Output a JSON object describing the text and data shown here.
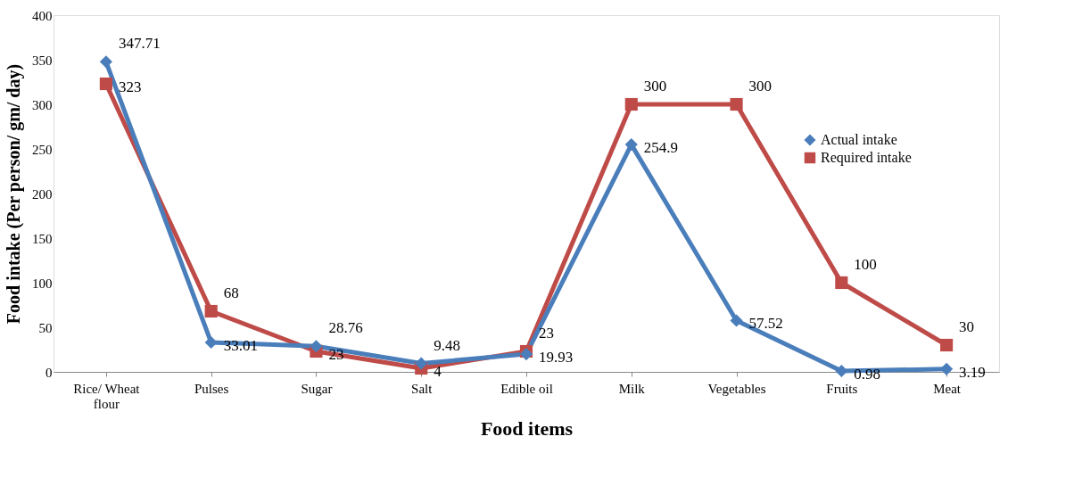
{
  "chart_data": {
    "type": "line",
    "xlabel": "Food items",
    "ylabel": "Food intake (Per person/ gm/ day)",
    "categories": [
      "Rice/ Wheat flour",
      "Pulses",
      "Sugar",
      "Salt",
      "Edible oil",
      "Milk",
      "Vegetables",
      "Fruits",
      "Meat"
    ],
    "series": [
      {
        "name": "Actual intake",
        "color": "#4a7ebb",
        "marker": "diamond",
        "values": [
          347.71,
          33.01,
          28.76,
          9.48,
          19.93,
          254.9,
          57.52,
          0.98,
          3.19
        ]
      },
      {
        "name": "Required intake",
        "color": "#be4b48",
        "marker": "square",
        "values": [
          323,
          68,
          23,
          4,
          23,
          300,
          300,
          100,
          30
        ]
      }
    ],
    "ylim": [
      0,
      400
    ],
    "yticks": [
      0,
      50,
      100,
      150,
      200,
      250,
      300,
      350,
      400
    ],
    "data_labels": true,
    "grid": false,
    "legend": "right"
  }
}
